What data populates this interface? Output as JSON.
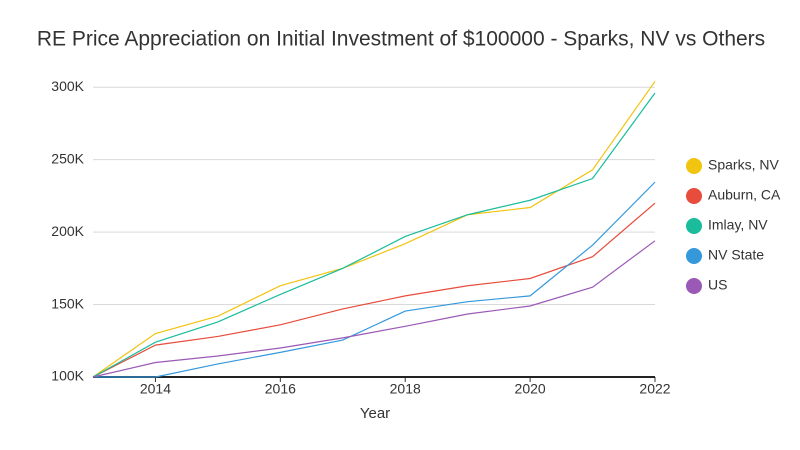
{
  "chart_data": {
    "type": "line",
    "title": "RE Price Appreciation on Initial Investment of $100000 - Sparks, NV vs Others",
    "x_label": "Year",
    "x": [
      2013,
      2014,
      2015,
      2016,
      2017,
      2018,
      2019,
      2020,
      2021,
      2022
    ],
    "xlim": [
      2013,
      2022
    ],
    "xticks": [
      2014,
      2016,
      2018,
      2020,
      2022
    ],
    "ylim": [
      100000,
      305000
    ],
    "yticks": [
      {
        "value": 100000,
        "label": "100K"
      },
      {
        "value": 150000,
        "label": "150K"
      },
      {
        "value": 200000,
        "label": "200K"
      },
      {
        "value": 250000,
        "label": "250K"
      },
      {
        "value": 300000,
        "label": "300K"
      }
    ],
    "grid": true,
    "legend": "right",
    "series": [
      {
        "name": "Sparks, NV",
        "color": "#f1c40f",
        "values": [
          100000,
          130000,
          142000,
          163000,
          175000,
          192000,
          212000,
          217000,
          243000,
          304000
        ]
      },
      {
        "name": "Auburn, CA",
        "color": "#e74c3c",
        "values": [
          100000,
          122000,
          128000,
          136000,
          147000,
          156000,
          163000,
          168000,
          183000,
          220000
        ]
      },
      {
        "name": "Imlay, NV",
        "color": "#1abc9c",
        "values": [
          100000,
          124000,
          138000,
          157000,
          175000,
          197000,
          212000,
          222000,
          237000,
          296000
        ]
      },
      {
        "name": "NV State",
        "color": "#3498db",
        "values": [
          100000,
          100000,
          109000,
          117000,
          125500,
          145500,
          152000,
          156000,
          191000,
          234500
        ]
      },
      {
        "name": "US",
        "color": "#9b59b6",
        "values": [
          100000,
          110000,
          114500,
          120000,
          127000,
          135000,
          143500,
          149000,
          162000,
          194000
        ]
      }
    ]
  }
}
